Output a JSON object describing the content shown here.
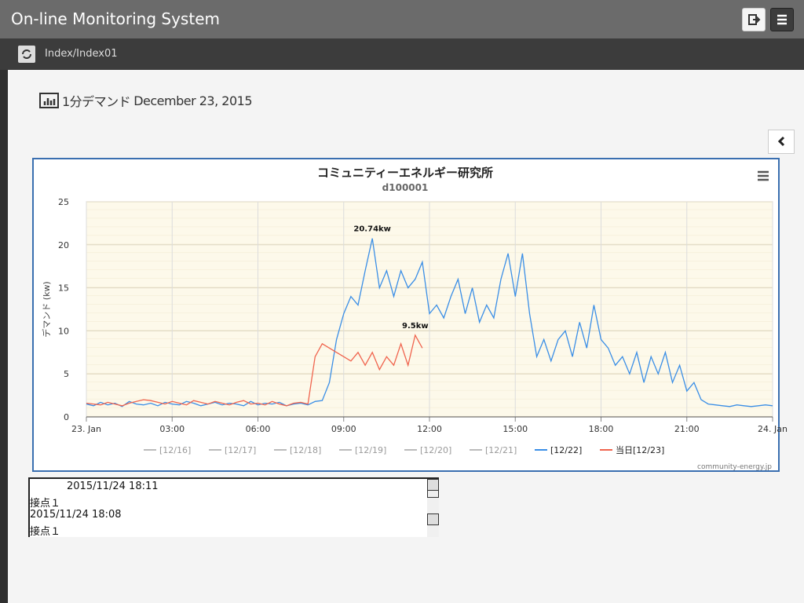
{
  "header": {
    "title": "On-line Monitoring System"
  },
  "breadcrumb": "Index/Index01",
  "heading": {
    "label": "1分デマンド",
    "date": "December 23, 2015"
  },
  "chart_data": {
    "type": "line",
    "title": "コミュニティーエネルギー研究所",
    "subtitle": "d100001",
    "y_label": "デマンド (kw)",
    "credit": "community-energy.jp",
    "xlim": [
      0,
      24
    ],
    "xticks": [
      {
        "value": 0,
        "label": "23. Jan"
      },
      {
        "value": 3,
        "label": "03:00"
      },
      {
        "value": 6,
        "label": "06:00"
      },
      {
        "value": 9,
        "label": "09:00"
      },
      {
        "value": 12,
        "label": "12:00"
      },
      {
        "value": 15,
        "label": "15:00"
      },
      {
        "value": 18,
        "label": "18:00"
      },
      {
        "value": 21,
        "label": "21:00"
      },
      {
        "value": 24,
        "label": "24. Jan"
      }
    ],
    "ylim": [
      0,
      25
    ],
    "yticks": [
      0,
      5,
      10,
      15,
      20,
      25
    ],
    "grid": true,
    "legend": "bottom",
    "x": [
      0,
      0.25,
      0.5,
      0.75,
      1,
      1.25,
      1.5,
      1.75,
      2,
      2.25,
      2.5,
      2.75,
      3,
      3.25,
      3.5,
      3.75,
      4,
      4.25,
      4.5,
      4.75,
      5,
      5.25,
      5.5,
      5.75,
      6,
      6.25,
      6.5,
      6.75,
      7,
      7.25,
      7.5,
      7.75,
      8,
      8.25,
      8.5,
      8.75,
      9,
      9.25,
      9.5,
      9.75,
      10,
      10.25,
      10.5,
      10.75,
      11,
      11.25,
      11.5,
      11.75,
      12,
      12.25,
      12.5,
      12.75,
      13,
      13.25,
      13.5,
      13.75,
      14,
      14.25,
      14.5,
      14.75,
      15,
      15.25,
      15.5,
      15.75,
      16,
      16.25,
      16.5,
      16.75,
      17,
      17.25,
      17.5,
      17.75,
      18,
      18.25,
      18.5,
      18.75,
      19,
      19.25,
      19.5,
      19.75,
      20,
      20.25,
      20.5,
      20.75,
      21,
      21.25,
      21.5,
      21.75,
      22,
      22.25,
      22.5,
      22.75,
      23,
      23.25,
      23.5,
      23.75,
      24
    ],
    "series": [
      {
        "name": "[12/16]",
        "color": "#bbbbbb",
        "visible": false
      },
      {
        "name": "[12/17]",
        "color": "#bbbbbb",
        "visible": false
      },
      {
        "name": "[12/18]",
        "color": "#bbbbbb",
        "visible": false
      },
      {
        "name": "[12/19]",
        "color": "#bbbbbb",
        "visible": false
      },
      {
        "name": "[12/20]",
        "color": "#bbbbbb",
        "visible": false
      },
      {
        "name": "[12/21]",
        "color": "#bbbbbb",
        "visible": false
      },
      {
        "name": "[12/22]",
        "color": "#3a8ee6",
        "visible": true,
        "values": [
          1.5,
          1.3,
          1.7,
          1.4,
          1.6,
          1.2,
          1.8,
          1.5,
          1.4,
          1.6,
          1.3,
          1.7,
          1.5,
          1.4,
          1.8,
          1.6,
          1.3,
          1.5,
          1.7,
          1.4,
          1.6,
          1.5,
          1.3,
          1.8,
          1.4,
          1.6,
          1.5,
          1.7,
          1.3,
          1.5,
          1.6,
          1.4,
          1.8,
          1.9,
          4,
          9,
          12,
          14,
          13,
          17,
          20.74,
          15,
          17,
          14,
          17,
          15,
          16,
          18,
          12,
          13,
          11.5,
          14,
          16,
          12,
          15,
          11,
          13,
          11.5,
          16,
          19,
          14,
          19,
          12,
          7,
          9,
          6.5,
          9,
          10,
          7,
          11,
          8,
          13,
          9,
          8,
          6,
          7,
          5,
          7.5,
          4,
          7,
          5,
          7.5,
          4,
          6,
          3,
          4,
          2,
          1.5,
          1.4,
          1.3,
          1.2,
          1.4,
          1.3,
          1.2,
          1.3,
          1.4,
          1.3
        ],
        "value_labels": [
          null,
          null,
          null,
          null,
          null,
          null,
          null,
          null,
          null,
          null,
          null,
          null,
          null,
          null,
          null,
          null,
          null,
          null,
          null,
          null,
          null,
          null,
          null,
          null,
          null,
          null,
          null,
          null,
          null,
          null,
          null,
          null,
          null,
          null,
          null,
          null,
          null,
          null,
          null,
          null,
          "20.74kw",
          null,
          null,
          null,
          null,
          null,
          null,
          null,
          null,
          null,
          null,
          null,
          null,
          null,
          null,
          null,
          null,
          null,
          null,
          null,
          null,
          null,
          null,
          null,
          null,
          null,
          null,
          null,
          null,
          null,
          null,
          null,
          null,
          null,
          null,
          null,
          null,
          null,
          null,
          null,
          null,
          null,
          null,
          null,
          null,
          null,
          null,
          null,
          null,
          null,
          null,
          null,
          null,
          null,
          null,
          null,
          null
        ]
      },
      {
        "name": "当日[12/23]",
        "color": "#f0644e",
        "visible": true,
        "values": [
          1.6,
          1.5,
          1.4,
          1.7,
          1.5,
          1.3,
          1.6,
          1.8,
          2.0,
          1.9,
          1.7,
          1.5,
          1.8,
          1.6,
          1.4,
          1.9,
          1.7,
          1.5,
          1.8,
          1.6,
          1.4,
          1.7,
          1.9,
          1.5,
          1.6,
          1.4,
          1.8,
          1.5,
          1.3,
          1.6,
          1.7,
          1.5,
          7,
          8.5,
          8,
          7.5,
          7,
          6.5,
          7.5,
          6,
          7.5,
          5.5,
          7,
          6,
          8.5,
          6,
          9.5,
          8,
          null,
          null,
          null,
          null,
          null,
          null,
          null,
          null,
          null,
          null,
          null,
          null,
          null,
          null,
          null,
          null,
          null,
          null,
          null,
          null,
          null,
          null,
          null,
          null,
          null,
          null,
          null,
          null,
          null,
          null,
          null,
          null,
          null,
          null,
          null,
          null,
          null,
          null,
          null,
          null,
          null,
          null,
          null,
          null,
          null,
          null,
          null,
          null,
          null
        ],
        "value_labels": [
          null,
          null,
          null,
          null,
          null,
          null,
          null,
          null,
          null,
          null,
          null,
          null,
          null,
          null,
          null,
          null,
          null,
          null,
          null,
          null,
          null,
          null,
          null,
          null,
          null,
          null,
          null,
          null,
          null,
          null,
          null,
          null,
          null,
          null,
          null,
          null,
          null,
          null,
          null,
          null,
          null,
          null,
          null,
          null,
          null,
          null,
          "9.5kw",
          null,
          null,
          null,
          null,
          null,
          null,
          null,
          null,
          null,
          null,
          null,
          null,
          null,
          null,
          null,
          null,
          null,
          null,
          null,
          null,
          null,
          null,
          null,
          null,
          null,
          null,
          null,
          null,
          null,
          null,
          null,
          null,
          null,
          null,
          null,
          null,
          null,
          null,
          null,
          null,
          null,
          null,
          null,
          null,
          null,
          null,
          null,
          null
        ]
      }
    ]
  },
  "log": [
    "2015/11/24 18:11",
    "接点１",
    "2015/11/24 18:08",
    "接点１"
  ]
}
